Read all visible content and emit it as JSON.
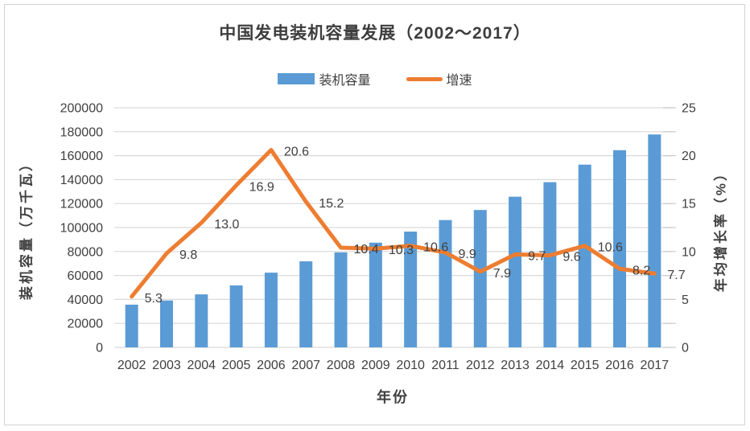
{
  "chart_data": {
    "type": "combo",
    "title": "中国发电装机容量发展（2002～2017）",
    "xlabel": "年份",
    "categories": [
      "2002",
      "2003",
      "2004",
      "2005",
      "2006",
      "2007",
      "2008",
      "2009",
      "2010",
      "2011",
      "2012",
      "2013",
      "2014",
      "2015",
      "2016",
      "2017"
    ],
    "series": [
      {
        "name": "装机容量",
        "chart": "bar",
        "axis": "left",
        "color": "#5B9BD5",
        "values": [
          35657,
          39141,
          44239,
          51718,
          62370,
          71822,
          79273,
          87410,
          96641,
          106253,
          114676,
          125768,
          137887,
          152527,
          164575,
          177703
        ]
      },
      {
        "name": "增速",
        "chart": "line",
        "axis": "right",
        "color": "#ED7D31",
        "values": [
          5.3,
          9.8,
          13.0,
          16.9,
          20.6,
          15.2,
          10.4,
          10.3,
          10.6,
          9.9,
          7.9,
          9.7,
          9.6,
          10.6,
          8.2,
          7.7
        ],
        "data_labels": [
          "5.3",
          "9.8",
          "13.0",
          "16.9",
          "20.6",
          "15.2",
          "10.4",
          "10.3",
          "10.6",
          "9.9",
          "7.9",
          "9.7",
          "9.6",
          "10.6",
          "8.2",
          "7.7"
        ]
      }
    ],
    "left_axis": {
      "title": "装机容量（万千瓦）",
      "min": 0,
      "max": 200000,
      "tick_step": 20000,
      "tick_labels": [
        "0",
        "20000",
        "40000",
        "60000",
        "80000",
        "100000",
        "120000",
        "140000",
        "160000",
        "180000",
        "200000"
      ]
    },
    "right_axis": {
      "title": "年均增长率（%）",
      "min": 0,
      "max": 25,
      "tick_step": 5,
      "minor_tick_step": 2.5,
      "tick_labels": [
        "0",
        "5",
        "10",
        "15",
        "20",
        "25"
      ]
    },
    "legend": {
      "position": "top",
      "items": [
        "装机容量",
        "增速"
      ]
    },
    "grid": true,
    "colors": {
      "bar": "#5B9BD5",
      "line": "#ED7D31",
      "grid": "#D9D9D9",
      "tick": "#C9C9C9",
      "text": "#3F3F3F",
      "frame": "#D4D4D4",
      "background": "#FFFFFF"
    }
  }
}
